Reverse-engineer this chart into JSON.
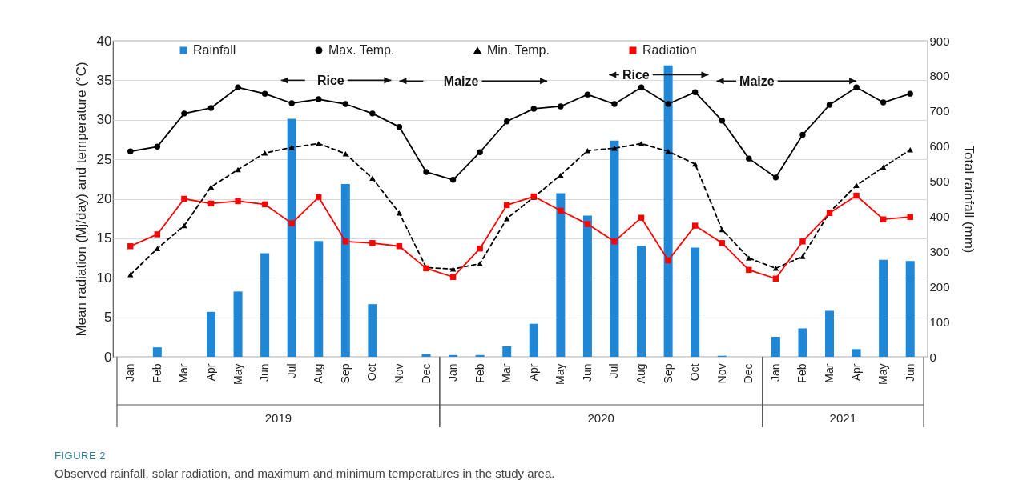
{
  "chart_data": {
    "type": "bar",
    "title": "FIGURE 2",
    "subtitle": "Observed rainfall, solar radiation, and maximum and minimum temperatures in the study area.",
    "categories": [
      "Jan",
      "Feb",
      "Mar",
      "Apr",
      "May",
      "Jun",
      "Jul",
      "Aug",
      "Sep",
      "Oct",
      "Nov",
      "Dec",
      "Jan",
      "Feb",
      "Mar",
      "Apr",
      "May",
      "Jun",
      "Jul",
      "Aug",
      "Sep",
      "Oct",
      "Nov",
      "Dec",
      "Jan",
      "Feb",
      "Mar",
      "Apr",
      "May",
      "Jun"
    ],
    "series": [
      {
        "name": "Rainfall",
        "axis": "y2",
        "color": "#1f87d6",
        "values": [
          0,
          27,
          0,
          128,
          186,
          295,
          678,
          330,
          492,
          150,
          0,
          8,
          5,
          5,
          30,
          94,
          466,
          402,
          616,
          316,
          830,
          311,
          3,
          0,
          57,
          81,
          131,
          22,
          276,
          273
        ]
      },
      {
        "name": "Max. Temp.",
        "type": "line",
        "axis": "y",
        "color": "#000000",
        "marker": "circle",
        "line_style": "solid",
        "values": [
          26.0,
          26.6,
          30.8,
          31.5,
          34.1,
          33.3,
          32.1,
          32.6,
          32.0,
          30.8,
          29.1,
          23.4,
          22.4,
          25.9,
          29.8,
          31.4,
          31.7,
          33.2,
          32.0,
          34.1,
          32.0,
          33.5,
          29.9,
          25.1,
          22.7,
          28.1,
          31.9,
          34.1,
          32.2,
          33.3
        ]
      },
      {
        "name": "Min. Temp.",
        "type": "line",
        "axis": "y",
        "color": "#000000",
        "marker": "triangle",
        "line_style": "dashed",
        "values": [
          10.4,
          13.7,
          16.6,
          21.5,
          23.7,
          25.8,
          26.5,
          27.0,
          25.7,
          22.6,
          18.2,
          11.3,
          11.1,
          11.8,
          17.5,
          20.2,
          23.0,
          26.1,
          26.4,
          27.0,
          26.0,
          24.4,
          16.1,
          12.5,
          11.2,
          12.7,
          18.3,
          21.7,
          24.0,
          26.2
        ]
      },
      {
        "name": "Radiation",
        "type": "line",
        "axis": "y",
        "color": "#ff0000",
        "marker": "square",
        "line_style": "solid",
        "values": [
          14.0,
          15.5,
          20.0,
          19.4,
          19.7,
          19.3,
          16.9,
          20.2,
          14.6,
          14.4,
          14.0,
          11.2,
          10.1,
          13.7,
          19.2,
          20.3,
          18.5,
          16.8,
          14.6,
          17.6,
          12.2,
          16.6,
          14.4,
          11.0,
          9.9,
          14.6,
          18.2,
          20.4,
          17.4,
          17.7
        ]
      }
    ],
    "ylabel": "Mean radiation (Mj/day) and temperature (°C)",
    "y2label": "Total rainfall (mm)",
    "ylim": [
      0,
      40
    ],
    "yticks": [
      0,
      5,
      10,
      15,
      20,
      25,
      30,
      35,
      40
    ],
    "y2lim": [
      0,
      900
    ],
    "y2ticks": [
      0,
      100,
      200,
      300,
      400,
      500,
      600,
      700,
      800,
      900
    ],
    "grid": "y",
    "legend": "top",
    "annotations": [
      "Rice",
      "Maize",
      "Rice",
      "Maize",
      "2019",
      "2020",
      "2021"
    ]
  }
}
